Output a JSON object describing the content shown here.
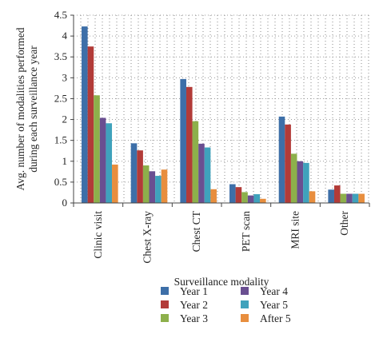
{
  "chart_data": {
    "type": "bar",
    "title": "",
    "xlabel": "Surveillance modality",
    "ylabel": "Avg. number of modalities performed during each surveillance year",
    "ylabel_lines": [
      "Avg. number of modalities performed",
      "during each surveillance year"
    ],
    "ylim": [
      0,
      4.5
    ],
    "yticks": [
      "0",
      "0.5",
      "1",
      "1.5",
      "2",
      "2.5",
      "3",
      "3.5",
      "4",
      "4.5"
    ],
    "grid": "dotted",
    "legend_position": "bottom",
    "categories": [
      "Clinic visit",
      "Chest X-ray",
      "Chest CT",
      "PET scan",
      "MRI site",
      "Other"
    ],
    "series": [
      {
        "name": "Year 1",
        "color": "#3d6fa8",
        "values": [
          4.23,
          1.43,
          2.97,
          0.45,
          2.07,
          0.32
        ]
      },
      {
        "name": "Year 2",
        "color": "#b23b38",
        "values": [
          3.75,
          1.26,
          2.78,
          0.38,
          1.88,
          0.42
        ]
      },
      {
        "name": "Year 3",
        "color": "#8db04b",
        "values": [
          2.58,
          0.9,
          1.96,
          0.26,
          1.18,
          0.22
        ]
      },
      {
        "name": "Year 4",
        "color": "#6a4f91",
        "values": [
          2.04,
          0.76,
          1.42,
          0.18,
          1.0,
          0.22
        ]
      },
      {
        "name": "Year 5",
        "color": "#3fa2bc",
        "values": [
          1.91,
          0.65,
          1.33,
          0.21,
          0.96,
          0.22
        ]
      },
      {
        "name": "After 5",
        "color": "#e88e3e",
        "values": [
          0.92,
          0.8,
          0.33,
          0.1,
          0.28,
          0.22
        ]
      }
    ]
  }
}
